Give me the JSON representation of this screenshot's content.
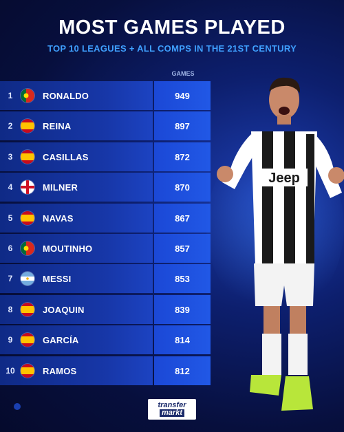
{
  "header": {
    "title": "MOST GAMES PLAYED",
    "subtitle": "TOP 10 LEAGUES + ALL COMPS IN THE 21ST CENTURY",
    "column_label": "GAMES"
  },
  "players": [
    {
      "rank": "1",
      "name": "RONALDO",
      "games": "949",
      "flag": "portugal-flag-icon"
    },
    {
      "rank": "2",
      "name": "REINA",
      "games": "897",
      "flag": "spain-flag-icon"
    },
    {
      "rank": "3",
      "name": "CASILLAS",
      "games": "872",
      "flag": "spain-flag-icon"
    },
    {
      "rank": "4",
      "name": "MILNER",
      "games": "870",
      "flag": "england-flag-icon"
    },
    {
      "rank": "5",
      "name": "NAVAS",
      "games": "867",
      "flag": "spain-flag-icon"
    },
    {
      "rank": "6",
      "name": "MOUTINHO",
      "games": "857",
      "flag": "portugal-flag-icon"
    },
    {
      "rank": "7",
      "name": "MESSI",
      "games": "853",
      "flag": "argentina-flag-icon"
    },
    {
      "rank": "8",
      "name": "JOAQUIN",
      "games": "839",
      "flag": "spain-flag-icon"
    },
    {
      "rank": "9",
      "name": "GARCÍA",
      "games": "814",
      "flag": "spain-flag-icon"
    },
    {
      "rank": "10",
      "name": "RAMOS",
      "games": "812",
      "flag": "spain-flag-icon"
    }
  ],
  "jersey_text": "Jeep",
  "logo": {
    "line1": "transfer",
    "line2": "markt"
  },
  "colors": {
    "accent": "#3fa0ff",
    "value_bar": "#2158e6",
    "background": "#070f3d"
  }
}
